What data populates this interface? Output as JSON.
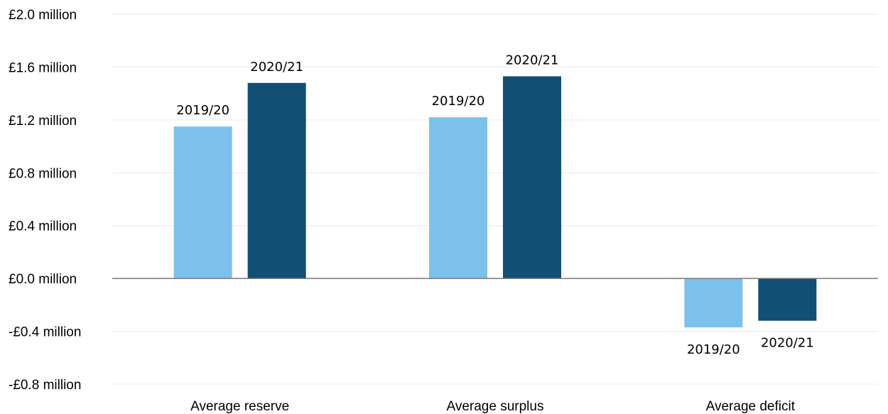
{
  "chart_data": {
    "type": "bar",
    "categories": [
      "Average reserve",
      "Average surplus",
      "Average deficit"
    ],
    "series": [
      {
        "name": "2019/20",
        "color": "#7cc1ec",
        "values": [
          1.15,
          1.22,
          -0.37
        ]
      },
      {
        "name": "2020/21",
        "color": "#114f74",
        "values": [
          1.48,
          1.53,
          -0.32
        ]
      }
    ],
    "yticks": [
      {
        "value": 2.0,
        "label": "£2.0 million"
      },
      {
        "value": 1.6,
        "label": "£1.6 million"
      },
      {
        "value": 1.2,
        "label": "£1.2 million"
      },
      {
        "value": 0.8,
        "label": "£0.8 million"
      },
      {
        "value": 0.4,
        "label": "£0.4 million"
      },
      {
        "value": 0.0,
        "label": "£0.0 million"
      },
      {
        "value": -0.4,
        "label": "-£0.4 million"
      },
      {
        "value": -0.8,
        "label": "-£0.8 million"
      }
    ],
    "ylim": [
      -0.8,
      2.0
    ],
    "grid": true,
    "legend": "none",
    "data_labels": "series-name"
  }
}
